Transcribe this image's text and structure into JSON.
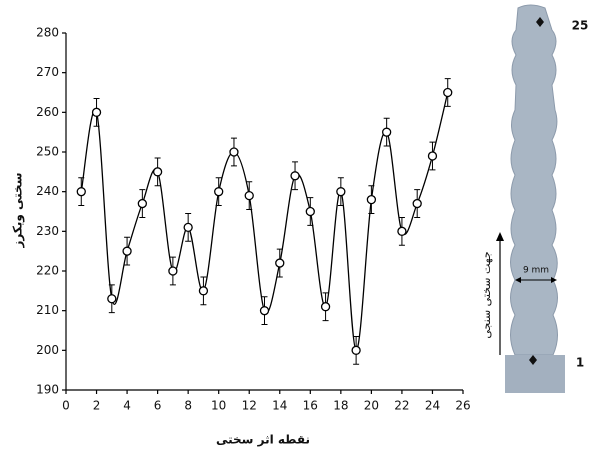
{
  "chart_data": {
    "type": "line",
    "x_label": "نقطه اثر سختی",
    "y_label": "سختی ویکرز",
    "x": [
      1,
      2,
      3,
      4,
      5,
      6,
      7,
      8,
      9,
      10,
      11,
      12,
      13,
      14,
      15,
      16,
      17,
      18,
      19,
      20,
      21,
      22,
      23,
      24,
      25
    ],
    "series": [
      {
        "color": "#000000",
        "values": [
          240,
          260,
          213,
          225,
          237,
          245,
          220,
          231,
          215,
          240,
          250,
          239,
          210,
          222,
          244,
          235,
          211,
          240,
          200,
          238,
          255,
          230,
          237,
          249,
          265
        ],
        "errors": [
          3.5,
          3.5,
          3.5,
          3.5,
          3.5,
          3.5,
          3.5,
          3.5,
          3.5,
          3.5,
          3.5,
          3.5,
          3.5,
          3.5,
          3.5,
          3.5,
          3.5,
          3.5,
          3.5,
          3.5,
          3.5,
          3.5,
          3.5,
          3.5,
          3.5
        ]
      }
    ],
    "xlim": [
      0,
      26
    ],
    "xticks": [
      0,
      2,
      4,
      6,
      8,
      10,
      12,
      14,
      16,
      18,
      20,
      22,
      24,
      26
    ],
    "ylim": [
      190,
      280
    ],
    "yticks": [
      190,
      200,
      210,
      220,
      230,
      240,
      250,
      260,
      270,
      280
    ],
    "annotations": {
      "top_point": "25",
      "bottom_point": "1",
      "width": "9 mm",
      "direction": "جهت سختی سنجی"
    }
  }
}
